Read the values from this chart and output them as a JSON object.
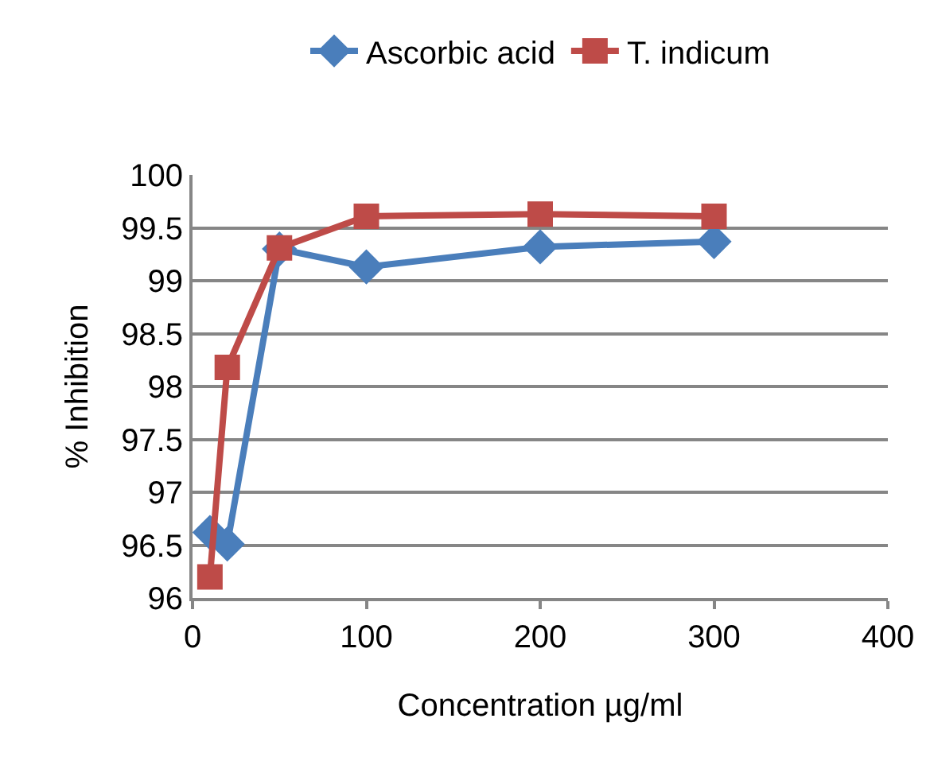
{
  "chart_data": {
    "type": "line",
    "xlabel": "Concentration µg/ml",
    "ylabel": "% Inhibition",
    "x": [
      10,
      20,
      50,
      100,
      200,
      300
    ],
    "series": [
      {
        "name": "Ascorbic acid",
        "color": "#4a7ebb",
        "values": [
          96.62,
          96.51,
          99.3,
          99.13,
          99.32,
          99.37
        ],
        "marker": "diamond"
      },
      {
        "name": "T. indicum",
        "color": "#be4b48",
        "values": [
          96.2,
          98.18,
          99.31,
          99.61,
          99.63,
          99.61
        ],
        "marker": "square"
      }
    ],
    "xlim": [
      0,
      400
    ],
    "xticks": [
      0,
      100,
      200,
      300,
      400
    ],
    "ylim": [
      96,
      100
    ],
    "yticks": [
      96,
      96.5,
      97,
      97.5,
      98,
      98.5,
      99,
      99.5,
      100
    ],
    "grid": "y",
    "legend": "top",
    "line_style": "solid"
  }
}
